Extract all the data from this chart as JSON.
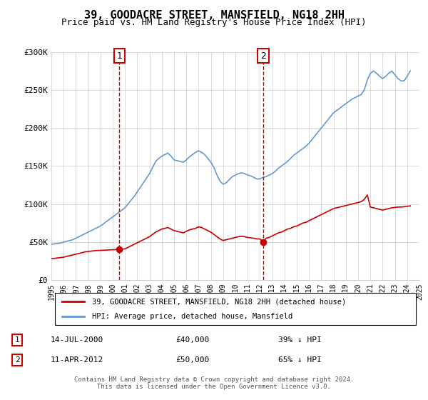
{
  "title": "39, GOODACRE STREET, MANSFIELD, NG18 2HH",
  "subtitle": "Price paid vs. HM Land Registry's House Price Index (HPI)",
  "hpi_label": "HPI: Average price, detached house, Mansfield",
  "property_label": "39, GOODACRE STREET, MANSFIELD, NG18 2HH (detached house)",
  "footer1": "Contains HM Land Registry data © Crown copyright and database right 2024.",
  "footer2": "This data is licensed under the Open Government Licence v3.0.",
  "transaction1": {
    "label": "1",
    "date": "14-JUL-2000",
    "price": "£40,000",
    "pct": "39% ↓ HPI"
  },
  "transaction2": {
    "label": "2",
    "date": "11-APR-2012",
    "price": "£50,000",
    "pct": "65% ↓ HPI"
  },
  "ylim": [
    0,
    300000
  ],
  "yticks": [
    0,
    50000,
    100000,
    150000,
    200000,
    250000,
    300000
  ],
  "ytick_labels": [
    "£0",
    "£50K",
    "£100K",
    "£150K",
    "£200K",
    "£250K",
    "£300K"
  ],
  "hpi_color": "#6699cc",
  "property_color": "#cc0000",
  "marker1_year": 2000.54,
  "marker1_price": 40000,
  "marker2_year": 2012.27,
  "marker2_price": 50000,
  "hpi_x": [
    1995,
    1995.25,
    1995.5,
    1995.75,
    1996,
    1996.25,
    1996.5,
    1996.75,
    1997,
    1997.25,
    1997.5,
    1997.75,
    1998,
    1998.25,
    1998.5,
    1998.75,
    1999,
    1999.25,
    1999.5,
    1999.75,
    2000,
    2000.25,
    2000.5,
    2000.75,
    2001,
    2001.25,
    2001.5,
    2001.75,
    2002,
    2002.25,
    2002.5,
    2002.75,
    2003,
    2003.25,
    2003.5,
    2003.75,
    2004,
    2004.25,
    2004.5,
    2004.75,
    2005,
    2005.25,
    2005.5,
    2005.75,
    2006,
    2006.25,
    2006.5,
    2006.75,
    2007,
    2007.25,
    2007.5,
    2007.75,
    2008,
    2008.25,
    2008.5,
    2008.75,
    2009,
    2009.25,
    2009.5,
    2009.75,
    2010,
    2010.25,
    2010.5,
    2010.75,
    2011,
    2011.25,
    2011.5,
    2011.75,
    2012,
    2012.25,
    2012.5,
    2012.75,
    2013,
    2013.25,
    2013.5,
    2013.75,
    2014,
    2014.25,
    2014.5,
    2014.75,
    2015,
    2015.25,
    2015.5,
    2015.75,
    2016,
    2016.25,
    2016.5,
    2016.75,
    2017,
    2017.25,
    2017.5,
    2017.75,
    2018,
    2018.25,
    2018.5,
    2018.75,
    2019,
    2019.25,
    2019.5,
    2019.75,
    2020,
    2020.25,
    2020.5,
    2020.75,
    2021,
    2021.25,
    2021.5,
    2021.75,
    2022,
    2022.25,
    2022.5,
    2022.75,
    2023,
    2023.25,
    2023.5,
    2023.75,
    2024,
    2024.25
  ],
  "hpi_y": [
    47000,
    47500,
    48000,
    48500,
    50000,
    51000,
    52000,
    53000,
    55000,
    57000,
    59000,
    61000,
    63000,
    65000,
    67000,
    69000,
    71000,
    74000,
    77000,
    80000,
    83000,
    86000,
    89000,
    92000,
    95000,
    100000,
    105000,
    110000,
    116000,
    122000,
    128000,
    134000,
    140000,
    148000,
    156000,
    160000,
    163000,
    165000,
    167000,
    163000,
    158000,
    157000,
    156000,
    155000,
    158000,
    162000,
    165000,
    168000,
    170000,
    168000,
    165000,
    160000,
    155000,
    148000,
    138000,
    130000,
    126000,
    128000,
    132000,
    136000,
    138000,
    140000,
    141000,
    140000,
    138000,
    137000,
    135000,
    133000,
    133000,
    135000,
    136000,
    138000,
    140000,
    143000,
    147000,
    150000,
    153000,
    156000,
    160000,
    164000,
    167000,
    170000,
    173000,
    176000,
    180000,
    185000,
    190000,
    195000,
    200000,
    205000,
    210000,
    215000,
    220000,
    223000,
    226000,
    229000,
    232000,
    235000,
    238000,
    240000,
    242000,
    244000,
    250000,
    263000,
    272000,
    275000,
    272000,
    268000,
    265000,
    268000,
    272000,
    275000,
    270000,
    265000,
    262000,
    262000,
    268000,
    275000
  ],
  "prop_x": [
    1995,
    1995.25,
    1995.5,
    1995.75,
    1996,
    1996.25,
    1996.5,
    1996.75,
    1997,
    1997.25,
    1997.5,
    1997.75,
    1998,
    1998.25,
    1998.5,
    1998.75,
    1999,
    1999.25,
    1999.5,
    1999.75,
    2000,
    2000.25,
    2000.54,
    2000.75,
    2001,
    2001.25,
    2001.5,
    2001.75,
    2002,
    2002.25,
    2002.5,
    2002.75,
    2003,
    2003.25,
    2003.5,
    2003.75,
    2004,
    2004.25,
    2004.5,
    2004.75,
    2005,
    2005.25,
    2005.5,
    2005.75,
    2006,
    2006.25,
    2006.5,
    2006.75,
    2007,
    2007.25,
    2007.5,
    2007.75,
    2008,
    2008.25,
    2008.5,
    2008.75,
    2009,
    2009.25,
    2009.5,
    2009.75,
    2010,
    2010.25,
    2010.5,
    2010.75,
    2011,
    2011.25,
    2011.5,
    2011.75,
    2012,
    2012.27,
    2012.5,
    2012.75,
    2013,
    2013.25,
    2013.5,
    2013.75,
    2014,
    2014.25,
    2014.5,
    2014.75,
    2015,
    2015.25,
    2015.5,
    2015.75,
    2016,
    2016.25,
    2016.5,
    2016.75,
    2017,
    2017.25,
    2017.5,
    2017.75,
    2018,
    2018.25,
    2018.5,
    2018.75,
    2019,
    2019.25,
    2019.5,
    2019.75,
    2020,
    2020.25,
    2020.5,
    2020.75,
    2021,
    2021.25,
    2021.5,
    2021.75,
    2022,
    2022.25,
    2022.5,
    2022.75,
    2023,
    2023.25,
    2023.5,
    2023.75,
    2024,
    2024.25
  ],
  "prop_y": [
    28000,
    28500,
    29000,
    29500,
    30000,
    31000,
    32000,
    33000,
    34000,
    35000,
    36000,
    37000,
    37500,
    38000,
    38500,
    38800,
    39000,
    39200,
    39400,
    39600,
    39800,
    40000,
    40000,
    40500,
    41000,
    43000,
    45000,
    47000,
    49000,
    51000,
    53000,
    55000,
    57000,
    60000,
    63000,
    65000,
    67000,
    68000,
    69000,
    67000,
    65000,
    64000,
    63000,
    62000,
    64000,
    66000,
    67000,
    68000,
    70000,
    69000,
    67000,
    65000,
    63000,
    60000,
    57000,
    54000,
    52000,
    53000,
    54000,
    55000,
    56000,
    57000,
    57500,
    57000,
    56000,
    55500,
    55000,
    54000,
    54000,
    50000,
    55000,
    56000,
    58000,
    60000,
    62000,
    63000,
    65000,
    67000,
    68000,
    70000,
    71000,
    73000,
    75000,
    76000,
    78000,
    80000,
    82000,
    84000,
    86000,
    88000,
    90000,
    92000,
    94000,
    95000,
    96000,
    97000,
    98000,
    99000,
    100000,
    101000,
    102000,
    103000,
    106000,
    112000,
    96000,
    95000,
    94000,
    93000,
    92000,
    93000,
    94000,
    95000,
    95500,
    96000,
    96000,
    96500,
    97000,
    97500
  ]
}
